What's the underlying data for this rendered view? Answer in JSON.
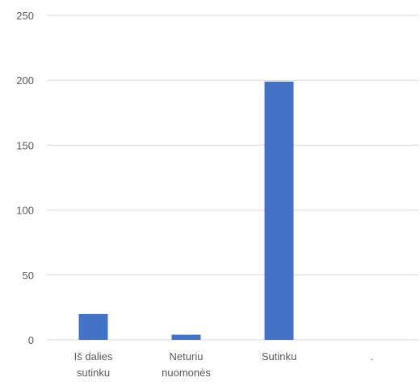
{
  "chart_data": {
    "type": "bar",
    "categories": [
      [
        "Iš dalies",
        "sutinku"
      ],
      [
        "Neturiu",
        "nuomonės"
      ],
      [
        "Sutinku"
      ],
      [
        "."
      ]
    ],
    "values": [
      20,
      4,
      199,
      0
    ],
    "ylim": [
      0,
      250
    ],
    "yticks": [
      0,
      50,
      100,
      150,
      200,
      250
    ],
    "grid": true,
    "legend": "none",
    "bar_color": "#4472C4"
  }
}
